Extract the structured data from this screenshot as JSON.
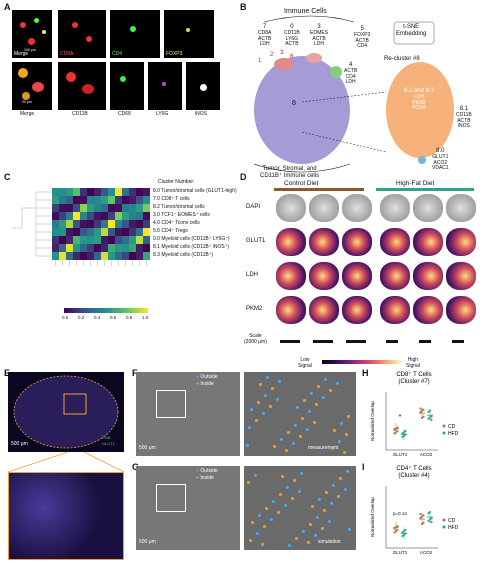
{
  "panels": {
    "A": "A",
    "B": "B",
    "C": "C",
    "D": "D",
    "E": "E",
    "F": "F",
    "G": "G",
    "H": "H",
    "I": "I"
  },
  "panelA": {
    "row1": [
      "Merge",
      "CD8A",
      "CD4",
      "FOXP3"
    ],
    "row2": [
      "Merge",
      "CD11B",
      "CD68",
      "LY6G",
      "iNOS"
    ],
    "scalebar1": "100 μm",
    "scalebar2": "20 μm"
  },
  "panelB": {
    "immune_cells": "Immune Cells",
    "embedding": "t-SNE\nEmbedding",
    "clusters": [
      {
        "id": "7",
        "markers": [
          "CD8A",
          "ACTB",
          "LDH"
        ]
      },
      {
        "id": "0",
        "markers": [
          "CD11B",
          "LY6G",
          "ACTB"
        ]
      },
      {
        "id": "3",
        "markers": [
          "EOMES",
          "ACTB",
          "LDH"
        ]
      },
      {
        "id": "5",
        "markers": [
          "FOXP3",
          "ACTB",
          "CD4"
        ]
      },
      {
        "id": "4",
        "markers": [
          "ACTB",
          "CD4",
          "LDH"
        ]
      }
    ],
    "small_labels": [
      "1",
      "2",
      "3",
      "6"
    ],
    "big_cluster": "8",
    "tumor_label": "Tumor, Stromal, and\nCD11B⁺ Immune cells",
    "recluster": "Re-cluster #8",
    "c82_83": {
      "id": "8.2 and 8.3",
      "markers": [
        "LDH",
        "PKM2",
        "PCNA"
      ]
    },
    "c81": {
      "id": "8.1",
      "markers": [
        "CD11B",
        "ACTB",
        "iNOS"
      ]
    },
    "c80": {
      "id": "8.0",
      "markers": [
        "GLUT1",
        "ACO2",
        "VDAC1"
      ]
    }
  },
  "panelC": {
    "header": "Cluster Number:",
    "rows": [
      "8.0 Tumor/stromal cells (GLUT1-high)",
      "7.0 CD8⁺ T cells",
      "8.2 Tumor/stromal cells",
      "3.0 TCF1⁺ EOMES⁺ cells",
      "4.0 CD4⁺ Tconv cells",
      "5.0 CD4⁺ Tregs",
      "0.0 Myeloid cells (CD11B⁺ LY6G⁺)",
      "8.1 Myeloid cells (CD11B⁺ iNOS⁺)",
      "8.3 Myeloid cells (CD11B⁺)"
    ],
    "colorbar_ticks": [
      "0.0",
      "0.2",
      "0.4",
      "0.6",
      "0.8",
      "1.0"
    ]
  },
  "panelD": {
    "control": "Control Diet",
    "hfd": "High-Fat Diet",
    "rows": [
      "DAPI",
      "GLUT1",
      "LDH",
      "PKM2"
    ],
    "scale": "Scale\n(2000 μm)",
    "low": "Low\nSignal",
    "high": "High\nSignal",
    "control_color": "#8b5a2b",
    "hfd_color": "#2ca58d"
  },
  "panelE": {
    "scalebar": "500 μm",
    "legend1": "CD8",
    "legend2": "GLUT1"
  },
  "panelF": {
    "scalebar": "500 μm",
    "outside": "Outside",
    "inside": "Inside",
    "tag": "measurement"
  },
  "panelG": {
    "scalebar": "500 μm",
    "outside": "Outside",
    "inside": "Inside",
    "tag": "simulation"
  },
  "chart_data": [
    {
      "type": "scatter",
      "title": "CD8⁺ T Cells\n(Cluster #7)",
      "ylabel": "Normalized Overlap",
      "categories": [
        "GLUT1",
        "ACO2"
      ],
      "annotation": "*",
      "series": [
        {
          "name": "CD",
          "color": "#b07a4a",
          "values": [
            -0.08,
            0.08
          ]
        },
        {
          "name": "HFD",
          "color": "#2ca58d",
          "values": [
            -0.14,
            0.06
          ]
        }
      ]
    },
    {
      "type": "scatter",
      "title": "CD4⁺ T Cells\n(Cluster #4)",
      "ylabel": "Normalized Overlap",
      "categories": [
        "GLUT1",
        "ACO2"
      ],
      "annotation": "p=0.14",
      "series": [
        {
          "name": "CD",
          "color": "#b07a4a",
          "values": [
            -0.1,
            -0.02
          ]
        },
        {
          "name": "HFD",
          "color": "#2ca58d",
          "values": [
            -0.16,
            0.0
          ]
        }
      ]
    }
  ]
}
